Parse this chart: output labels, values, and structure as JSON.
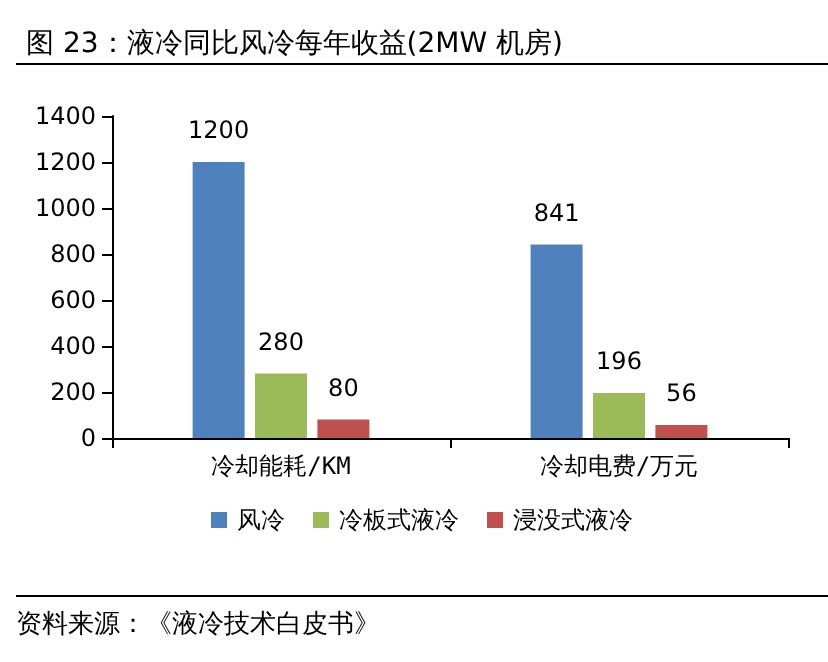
{
  "chart_data": {
    "type": "bar",
    "title": "图 23：液冷同比风冷每年收益(2MW 机房)",
    "categories": [
      "冷却能耗/KM",
      "冷却电费/万元"
    ],
    "series": [
      {
        "name": "风冷",
        "color": "#4f81bd",
        "values": [
          1200,
          841
        ]
      },
      {
        "name": "冷板式液冷",
        "color": "#9bbb59",
        "values": [
          280,
          196
        ]
      },
      {
        "name": "浸没式液冷",
        "color": "#c0504d",
        "values": [
          80,
          56
        ]
      }
    ],
    "ylim": [
      0,
      1400
    ],
    "yticks": [
      0,
      200,
      400,
      600,
      800,
      1000,
      1200,
      1400
    ],
    "grid": false,
    "legend": "bottom",
    "data_labels": true,
    "annotations": [
      "资料来源：《液冷技术白皮书》"
    ]
  }
}
